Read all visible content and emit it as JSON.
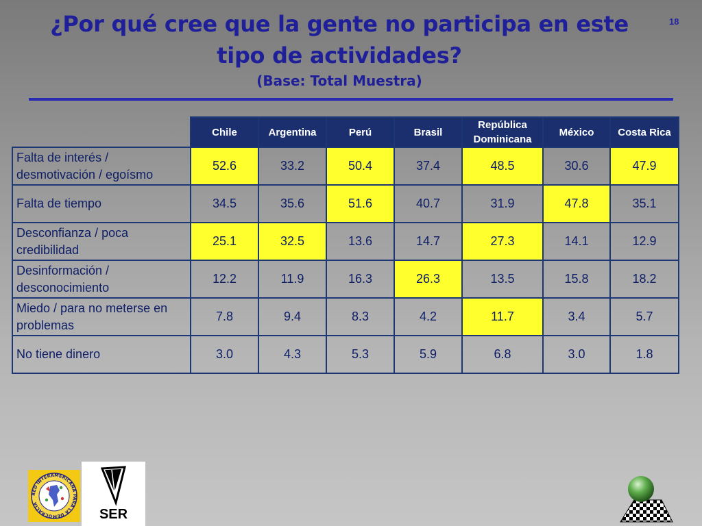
{
  "slide": {
    "title_line1": "¿Por qué cree que la gente no participa en este",
    "title_line2": "tipo de actividades?",
    "subtitle": "(Base: Total Muestra)",
    "slide_number": "18"
  },
  "table": {
    "columns": [
      {
        "line1": "Chile",
        "line2": ""
      },
      {
        "line1": "Argentina",
        "line2": ""
      },
      {
        "line1": "Perú",
        "line2": ""
      },
      {
        "line1": "Brasil",
        "line2": ""
      },
      {
        "line1": "República",
        "line2": "Dominicana"
      },
      {
        "line1": "México",
        "line2": ""
      },
      {
        "line1": "Costa Rica",
        "line2": ""
      }
    ],
    "rows": [
      {
        "label1": "Falta de interés /",
        "label2": "desmotivación / egoísmo",
        "values": [
          "52.6",
          "33.2",
          "50.4",
          "37.4",
          "48.5",
          "30.6",
          "47.9"
        ],
        "highlight": [
          true,
          false,
          true,
          false,
          true,
          false,
          true
        ]
      },
      {
        "label1": "Falta de tiempo",
        "label2": "",
        "values": [
          "34.5",
          "35.6",
          "51.6",
          "40.7",
          "31.9",
          "47.8",
          "35.1"
        ],
        "highlight": [
          false,
          false,
          true,
          false,
          false,
          true,
          false
        ]
      },
      {
        "label1": "Desconfianza / poca",
        "label2": "credibilidad",
        "values": [
          "25.1",
          "32.5",
          "13.6",
          "14.7",
          "27.3",
          "14.1",
          "12.9"
        ],
        "highlight": [
          true,
          true,
          false,
          false,
          true,
          false,
          false
        ]
      },
      {
        "label1": "Desinformación /",
        "label2": "desconocimiento",
        "values": [
          "12.2",
          "11.9",
          "16.3",
          "26.3",
          "13.5",
          "15.8",
          "18.2"
        ],
        "highlight": [
          false,
          false,
          false,
          true,
          false,
          false,
          false
        ]
      },
      {
        "label1": "Miedo / para no meterse en",
        "label2": "problemas",
        "values": [
          "7.8",
          "9.4",
          "8.3",
          "4.2",
          "11.7",
          "3.4",
          "5.7"
        ],
        "highlight": [
          false,
          false,
          false,
          false,
          true,
          false,
          false
        ]
      },
      {
        "label1": "No tiene dinero",
        "label2": "",
        "values": [
          "3.0",
          "4.3",
          "5.3",
          "5.9",
          "6.8",
          "3.0",
          "1.8"
        ],
        "highlight": [
          false,
          false,
          false,
          false,
          false,
          false,
          false
        ]
      }
    ]
  },
  "logos": {
    "ser_label": "SER",
    "redi_text": "RED INTERAMERICANA PARA LA DEMOCRACIA"
  },
  "colors": {
    "title": "#1f1f9a",
    "header_bg": "#1b2f6e",
    "highlight": "#ffff2e",
    "cell_text": "#0e1e66"
  }
}
